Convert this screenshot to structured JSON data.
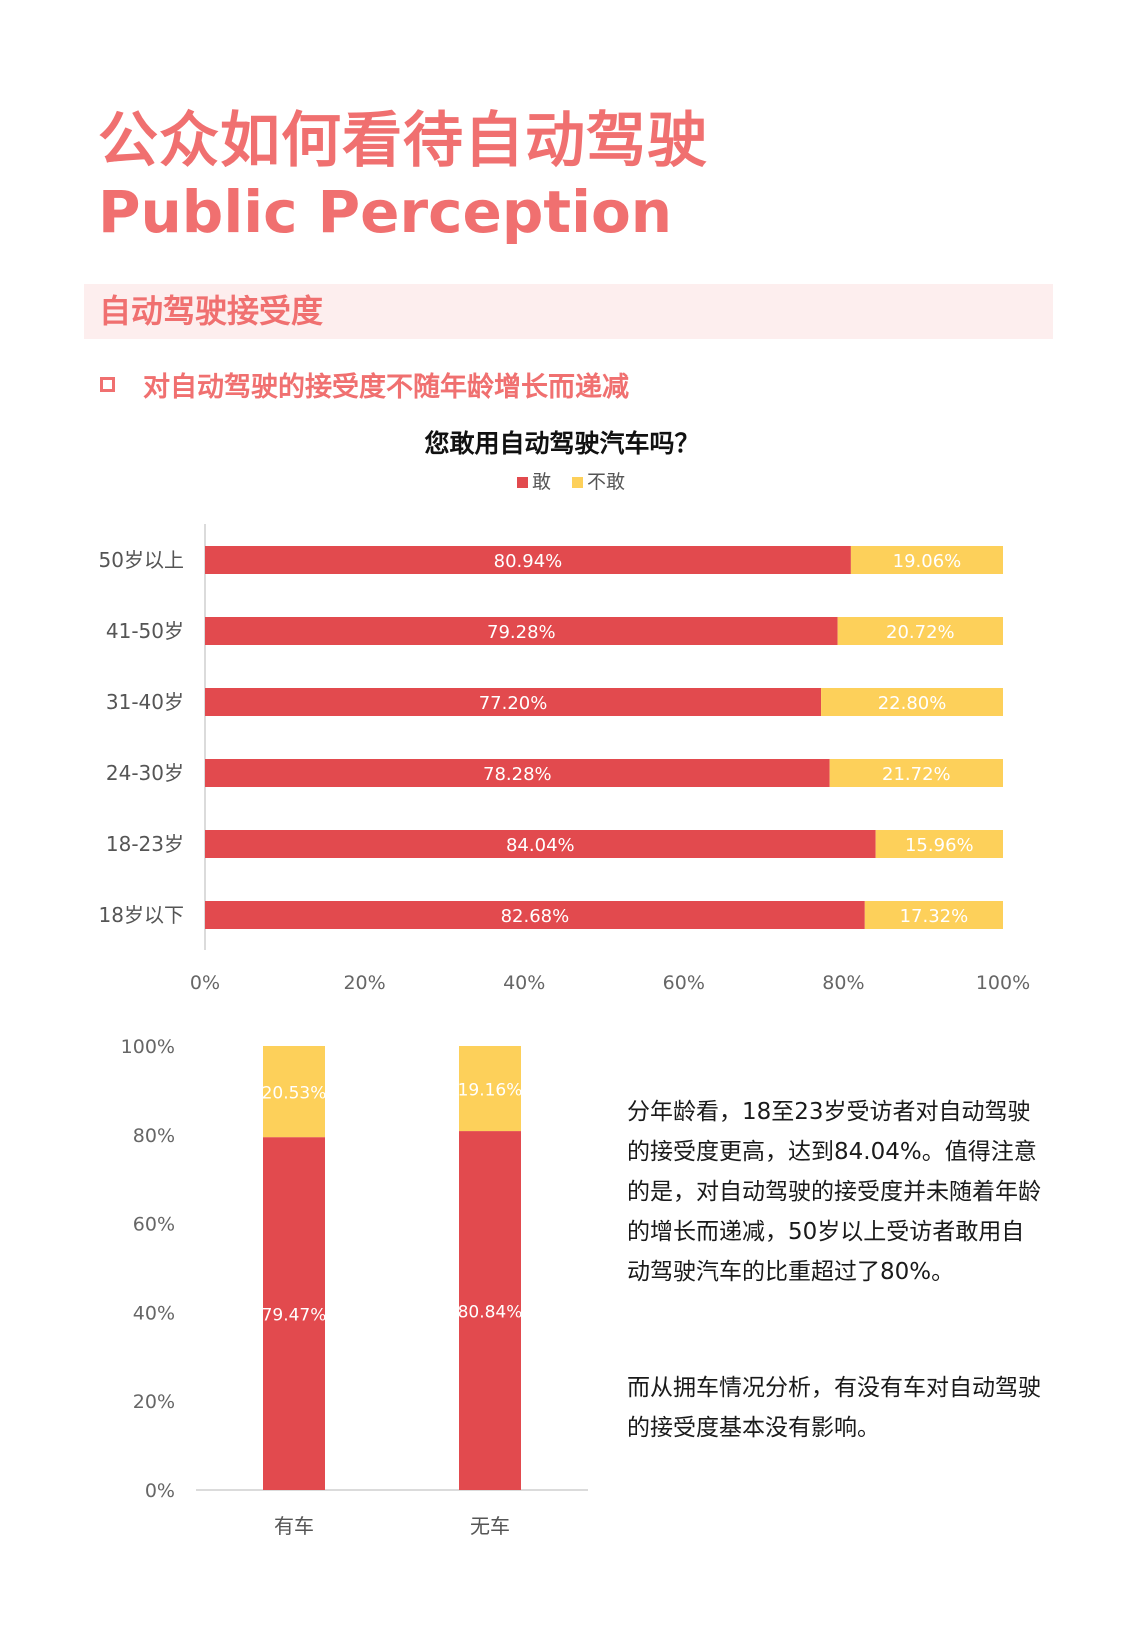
{
  "header": {
    "title_cn": "公众如何看待自动驾驶",
    "title_en": "Public Perception",
    "section_title": "自动驾驶接受度",
    "bullet_text": "对自动驾驶的接受度不随年龄增长而递减"
  },
  "colors": {
    "accent": "#f07070",
    "dare": "#e24a4e",
    "not_dare": "#fdd05a",
    "band": "#fdeeee"
  },
  "chart_data": [
    {
      "type": "bar",
      "orientation": "horizontal",
      "stacked": true,
      "title": "您敢用自动驾驶汽车吗？",
      "legend": "top-center",
      "categories": [
        "50岁以上",
        "41-50岁",
        "31-40岁",
        "24-30岁",
        "18-23岁",
        "18岁以下"
      ],
      "series": [
        {
          "name": "敢",
          "values": [
            80.94,
            79.28,
            77.2,
            78.28,
            84.04,
            82.68
          ],
          "labels": [
            "80.94%",
            "79.28%",
            "77.20%",
            "78.28%",
            "84.04%",
            "82.68%"
          ]
        },
        {
          "name": "不敢",
          "values": [
            19.06,
            20.72,
            22.8,
            21.72,
            15.96,
            17.32
          ],
          "labels": [
            "19.06%",
            "20.72%",
            "22.80%",
            "21.72%",
            "15.96%",
            "17.32%"
          ]
        }
      ],
      "xlim": [
        0,
        100
      ],
      "x_ticks": [
        "0%",
        "20%",
        "40%",
        "60%",
        "80%",
        "100%"
      ],
      "grid": false
    },
    {
      "type": "bar",
      "orientation": "vertical",
      "stacked": true,
      "categories": [
        "有车",
        "无车"
      ],
      "series": [
        {
          "name": "敢",
          "values": [
            79.47,
            80.84
          ],
          "labels": [
            "79.47%",
            "80.84%"
          ]
        },
        {
          "name": "不敢",
          "values": [
            20.53,
            19.16
          ],
          "labels": [
            "20.53%",
            "19.16%"
          ]
        }
      ],
      "ylim": [
        0,
        100
      ],
      "y_ticks": [
        "0%",
        "20%",
        "40%",
        "60%",
        "80%",
        "100%"
      ],
      "grid": false
    }
  ],
  "text": {
    "para1": "分年龄看，18至23岁受访者对自动驾驶的接受度更高，达到84.04%。值得注意的是，对自动驾驶的接受度并未随着年龄的增长而递减，50岁以上受访者敢用自动驾驶汽车的比重超过了80%。",
    "para2": "而从拥车情况分析，有没有车对自动驾驶的接受度基本没有影响。"
  }
}
